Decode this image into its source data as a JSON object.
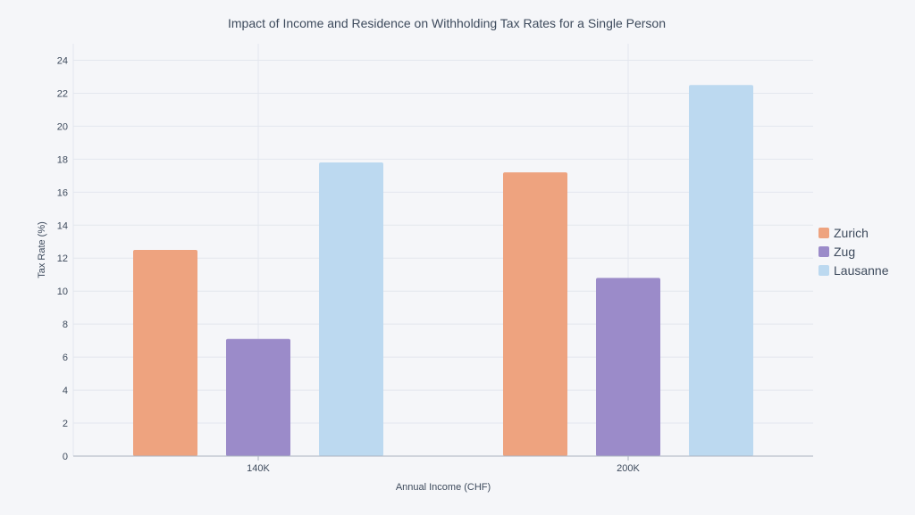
{
  "chart_data": {
    "type": "bar",
    "title": "Impact of Income and Residence on Withholding Tax Rates for a Single Person",
    "xlabel": "Annual Income (CHF)",
    "ylabel": "Tax Rate (%)",
    "categories": [
      "140K",
      "200K"
    ],
    "series": [
      {
        "name": "Zurich",
        "color": "#eea37f",
        "values": [
          12.5,
          17.2
        ]
      },
      {
        "name": "Zug",
        "color": "#9b8bc9",
        "values": [
          7.1,
          10.8
        ]
      },
      {
        "name": "Lausanne",
        "color": "#bcd9f0",
        "values": [
          17.8,
          22.5
        ]
      }
    ],
    "ylim": [
      0,
      25
    ],
    "yticks": [
      0,
      2,
      4,
      6,
      8,
      10,
      12,
      14,
      16,
      18,
      20,
      22,
      24
    ],
    "grid": true,
    "legend_position": "right"
  }
}
